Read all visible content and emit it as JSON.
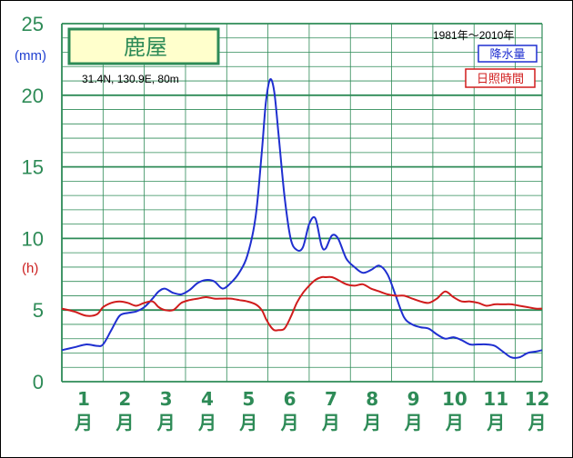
{
  "chart_data": {
    "type": "line",
    "title": "鹿屋",
    "location": "31.4N,  130.9E,  80m",
    "period": "1981年～2010年",
    "y_left_ticks": [
      "0",
      "5",
      "10",
      "15",
      "20",
      "25"
    ],
    "y_left_unit": "(mm)",
    "y_right_unit": "(h)",
    "ylim": [
      0,
      25
    ],
    "x_ticks_num": [
      "1",
      "2",
      "3",
      "4",
      "5",
      "6",
      "7",
      "8",
      "9",
      "10",
      "11",
      "12"
    ],
    "x_ticks_suffix": "月",
    "xlim": [
      1,
      12.65
    ],
    "legend": [
      "降水量",
      "日照時間"
    ],
    "series": [
      {
        "name": "降水量",
        "color": "#1f2fd0",
        "x": [
          1.0,
          1.3,
          1.6,
          1.85,
          2.0,
          2.2,
          2.4,
          2.6,
          2.8,
          3.0,
          3.2,
          3.35,
          3.5,
          3.7,
          3.9,
          4.1,
          4.3,
          4.5,
          4.7,
          4.9,
          5.1,
          5.3,
          5.5,
          5.7,
          5.85,
          5.95,
          6.05,
          6.15,
          6.25,
          6.4,
          6.55,
          6.7,
          6.85,
          7.0,
          7.15,
          7.3,
          7.4,
          7.55,
          7.7,
          7.9,
          8.1,
          8.3,
          8.5,
          8.7,
          8.9,
          9.1,
          9.3,
          9.5,
          9.7,
          9.9,
          10.1,
          10.3,
          10.5,
          10.7,
          10.9,
          11.1,
          11.3,
          11.5,
          11.7,
          11.9,
          12.1,
          12.3,
          12.5,
          12.65
        ],
        "values": [
          2.2,
          2.4,
          2.6,
          2.5,
          2.6,
          3.6,
          4.6,
          4.8,
          4.9,
          5.2,
          5.8,
          6.3,
          6.5,
          6.2,
          6.1,
          6.4,
          6.9,
          7.1,
          7.0,
          6.5,
          6.9,
          7.6,
          8.8,
          11.5,
          16.0,
          19.5,
          21.1,
          20.3,
          17.5,
          13.0,
          10.0,
          9.2,
          9.4,
          11.0,
          11.4,
          9.5,
          9.3,
          10.2,
          10.0,
          8.6,
          8.0,
          7.6,
          7.8,
          8.1,
          7.5,
          6.0,
          4.5,
          4.0,
          3.8,
          3.7,
          3.3,
          3.0,
          3.1,
          2.9,
          2.6,
          2.6,
          2.6,
          2.5,
          2.1,
          1.7,
          1.7,
          2.0,
          2.1,
          2.2
        ]
      },
      {
        "name": "日照時間",
        "color": "#d01c1c",
        "x": [
          1.0,
          1.3,
          1.6,
          1.85,
          2.0,
          2.2,
          2.4,
          2.6,
          2.8,
          3.0,
          3.2,
          3.35,
          3.5,
          3.7,
          3.9,
          4.1,
          4.3,
          4.5,
          4.7,
          4.9,
          5.1,
          5.3,
          5.5,
          5.7,
          5.85,
          5.95,
          6.05,
          6.15,
          6.25,
          6.4,
          6.55,
          6.7,
          6.85,
          7.0,
          7.15,
          7.3,
          7.4,
          7.55,
          7.7,
          7.9,
          8.1,
          8.3,
          8.5,
          8.7,
          8.9,
          9.1,
          9.3,
          9.5,
          9.7,
          9.9,
          10.1,
          10.3,
          10.5,
          10.7,
          10.9,
          11.1,
          11.3,
          11.5,
          11.7,
          11.9,
          12.1,
          12.3,
          12.5,
          12.65
        ],
        "values": [
          5.1,
          4.9,
          4.6,
          4.7,
          5.2,
          5.5,
          5.6,
          5.5,
          5.3,
          5.5,
          5.6,
          5.2,
          5.0,
          5.0,
          5.5,
          5.7,
          5.8,
          5.9,
          5.8,
          5.8,
          5.8,
          5.7,
          5.6,
          5.4,
          5.0,
          4.4,
          3.9,
          3.6,
          3.6,
          3.7,
          4.5,
          5.5,
          6.2,
          6.7,
          7.1,
          7.3,
          7.3,
          7.3,
          7.1,
          6.8,
          6.7,
          6.8,
          6.5,
          6.3,
          6.1,
          6.0,
          6.0,
          5.8,
          5.6,
          5.5,
          5.8,
          6.3,
          5.9,
          5.6,
          5.6,
          5.5,
          5.3,
          5.4,
          5.4,
          5.4,
          5.3,
          5.2,
          5.1,
          5.1
        ]
      }
    ]
  }
}
